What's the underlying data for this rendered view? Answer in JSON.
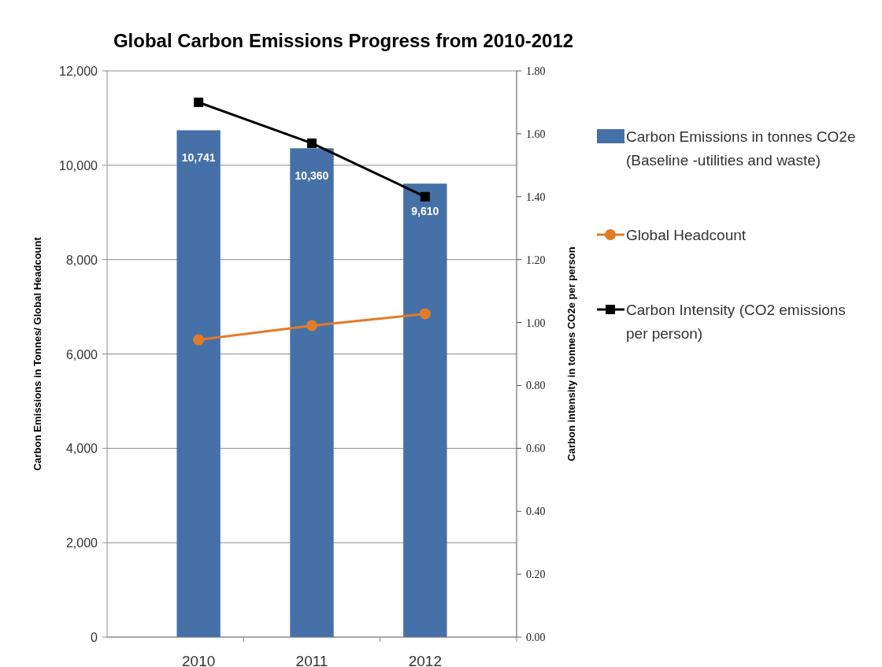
{
  "chart_data": {
    "type": "bar",
    "title": "Global Carbon Emissions Progress from 2010-2012",
    "ylabel": "Carbon Emissions in Tonnes/ Global Headcount",
    "y2label": "Carbon intensity in tonnes CO2e per person",
    "categories": [
      "2010",
      "2011",
      "2012"
    ],
    "series": [
      {
        "name": "Carbon Emissions in tonnes CO2e (Baseline -utilities and waste)",
        "color": "#4571a8",
        "values": [
          10741,
          10360,
          9610
        ],
        "value_labels": [
          "10,741",
          "10,360",
          "9,610"
        ]
      },
      {
        "name": "Global Headcount",
        "type": "line",
        "color": "#e07b28",
        "marker": "circle",
        "values": [
          6300,
          6600,
          6850
        ]
      },
      {
        "name": "Carbon Intensity (CO2 emissions per person)",
        "type": "line",
        "color": "#000000",
        "marker": "square",
        "axis": "y2",
        "values": [
          1.7,
          1.57,
          1.4
        ]
      }
    ],
    "ylim": [
      0,
      12000
    ],
    "yticks": [
      {
        "value": 0,
        "label": "0"
      },
      {
        "value": 2000,
        "label": "2,000"
      },
      {
        "value": 4000,
        "label": "4,000"
      },
      {
        "value": 6000,
        "label": "6,000"
      },
      {
        "value": 8000,
        "label": "8,000"
      },
      {
        "value": 10000,
        "label": "10,000"
      },
      {
        "value": 12000,
        "label": "12,000"
      }
    ],
    "y2lim": [
      0,
      1.8
    ],
    "y2ticks": [
      {
        "value": 0,
        "label": "0.00"
      },
      {
        "value": 0.2,
        "label": "0.20"
      },
      {
        "value": 0.4,
        "label": "0.40"
      },
      {
        "value": 0.6,
        "label": "0.60"
      },
      {
        "value": 0.8,
        "label": "0.80"
      },
      {
        "value": 1,
        "label": "1.00"
      },
      {
        "value": 1.2,
        "label": "1.20"
      },
      {
        "value": 1.4,
        "label": "1.40"
      },
      {
        "value": 1.6,
        "label": "1.60"
      },
      {
        "value": 1.8,
        "label": "1.80"
      }
    ],
    "grid": "y",
    "legend": "right"
  }
}
